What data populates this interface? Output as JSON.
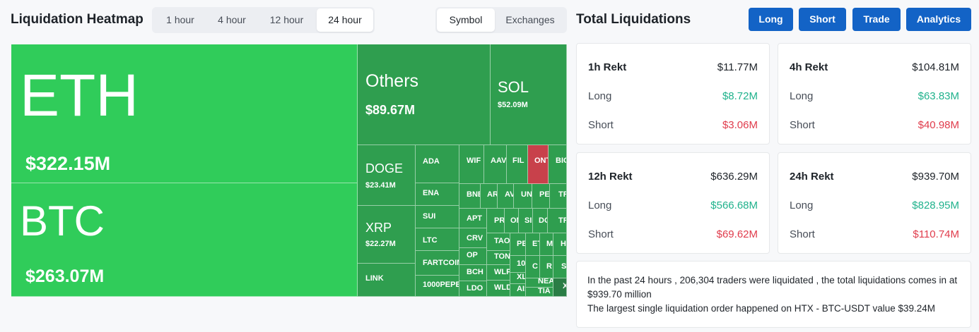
{
  "heatmap": {
    "title": "Liquidation Heatmap",
    "time_options": [
      "1 hour",
      "4 hour",
      "12 hour",
      "24 hour"
    ],
    "time_selected": "24 hour",
    "mode_options": [
      "Symbol",
      "Exchanges"
    ],
    "mode_selected": "Symbol"
  },
  "total": {
    "title": "Total Liquidations",
    "buttons": [
      "Long",
      "Short",
      "Trade",
      "Analytics"
    ]
  },
  "tiles": [
    {
      "sym": "ETH",
      "val": "$322.15M"
    },
    {
      "sym": "BTC",
      "val": "$263.07M"
    },
    {
      "sym": "Others",
      "val": "$89.67M"
    },
    {
      "sym": "SOL",
      "val": "$52.09M"
    },
    {
      "sym": "DOGE",
      "val": "$23.41M"
    },
    {
      "sym": "XRP",
      "val": "$22.27M"
    },
    {
      "sym": "LINK"
    },
    {
      "sym": "ADA"
    },
    {
      "sym": "ENA"
    },
    {
      "sym": "SUI"
    },
    {
      "sym": "LTC"
    },
    {
      "sym": "FARTCOIN"
    },
    {
      "sym": "1000PEPE"
    },
    {
      "sym": "WIF"
    },
    {
      "sym": "AAVE"
    },
    {
      "sym": "FIL"
    },
    {
      "sym": "ONT"
    },
    {
      "sym": "BIO"
    },
    {
      "sym": "BNB"
    },
    {
      "sym": "AR"
    },
    {
      "sym": "AVA"
    },
    {
      "sym": "UNI"
    },
    {
      "sym": "PE"
    },
    {
      "sym": "TR"
    },
    {
      "sym": "APT"
    },
    {
      "sym": "PR"
    },
    {
      "sym": "ON"
    },
    {
      "sym": "SI"
    },
    {
      "sym": "DO"
    },
    {
      "sym": "TR"
    },
    {
      "sym": "CRV"
    },
    {
      "sym": "TAO"
    },
    {
      "sym": "PE"
    },
    {
      "sym": "ET"
    },
    {
      "sym": "M"
    },
    {
      "sym": "H"
    },
    {
      "sym": "OP"
    },
    {
      "sym": "TON"
    },
    {
      "sym": "BCH"
    },
    {
      "sym": "WLF"
    },
    {
      "sym": "100"
    },
    {
      "sym": "C"
    },
    {
      "sym": "R"
    },
    {
      "sym": "S"
    },
    {
      "sym": "XLN"
    },
    {
      "sym": "LDO"
    },
    {
      "sym": "WLD"
    },
    {
      "sym": "AI1"
    },
    {
      "sym": "NEA"
    },
    {
      "sym": "TIA"
    },
    {
      "sym": "X"
    }
  ],
  "cards": [
    {
      "title": "1h Rekt",
      "total": "$11.77M",
      "long_label": "Long",
      "long": "$8.72M",
      "short_label": "Short",
      "short": "$3.06M"
    },
    {
      "title": "4h Rekt",
      "total": "$104.81M",
      "long_label": "Long",
      "long": "$63.83M",
      "short_label": "Short",
      "short": "$40.98M"
    },
    {
      "title": "12h Rekt",
      "total": "$636.29M",
      "long_label": "Long",
      "long": "$566.68M",
      "short_label": "Short",
      "short": "$69.62M"
    },
    {
      "title": "24h Rekt",
      "total": "$939.70M",
      "long_label": "Long",
      "long": "$828.95M",
      "short_label": "Short",
      "short": "$110.74M"
    }
  ],
  "summary": {
    "line1": "In the past 24 hours , 206,304 traders were liquidated , the total liquidations comes in at $939.70 million",
    "line2": "The largest single liquidation order happened on HTX - BTC-USDT value $39.24M"
  },
  "colors": {
    "accent_button": "#1363c6",
    "tile_bright": "#30cc5a",
    "tile_mid": "#2f9e4f",
    "tile_dark": "#2a7d45",
    "tile_red": "#c8414b",
    "long_value": "#20b28c",
    "short_value": "#e03c4c"
  }
}
